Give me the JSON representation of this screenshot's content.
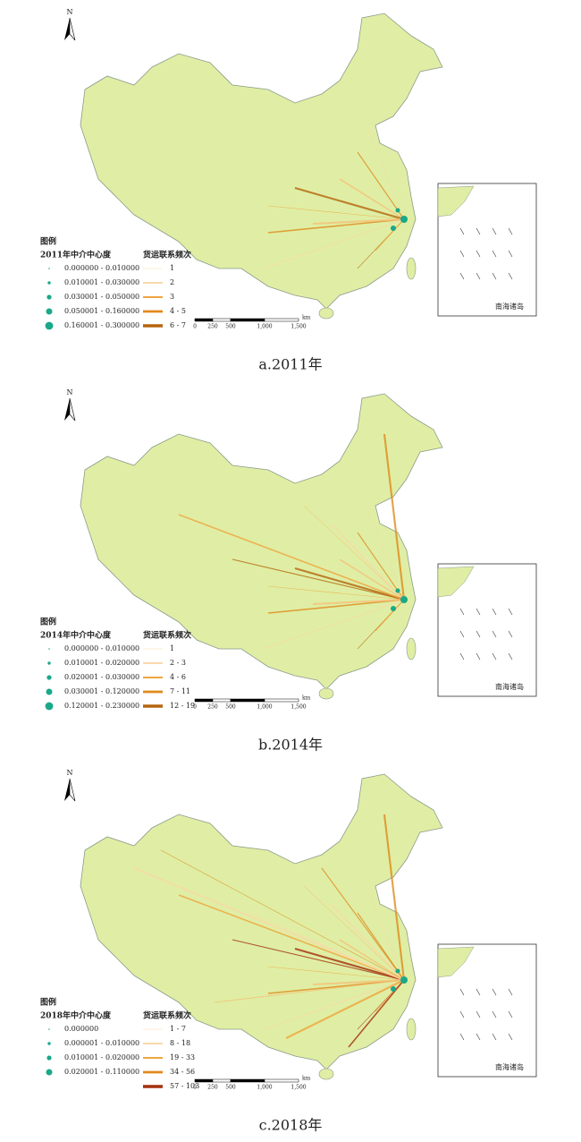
{
  "panels": [
    {
      "caption": "a.2011年",
      "north": "N",
      "legend_title": "图例",
      "centrality_title": "2011年中介中心度",
      "centrality_classes": [
        "0.000000 - 0.010000",
        "0.010001 - 0.030000",
        "0.030001 - 0.050000",
        "0.050001 - 0.160000",
        "0.160001 - 0.300000"
      ],
      "flow_title": "货运联系频次",
      "flow_classes": [
        "1",
        "2",
        "3",
        "4 - 5",
        "6 - 7"
      ],
      "scale_labels": [
        "0",
        "250",
        "500",
        "1,000",
        "1,500"
      ],
      "scale_unit": "km",
      "inset_label": "南海诸岛"
    },
    {
      "caption": "b.2014年",
      "north": "N",
      "legend_title": "图例",
      "centrality_title": "2014年中介中心度",
      "centrality_classes": [
        "0.000000 - 0.010000",
        "0.010001 - 0.020000",
        "0.020001 - 0.030000",
        "0.030001 - 0.120000",
        "0.120001 - 0.230000"
      ],
      "flow_title": "货运联系频次",
      "flow_classes": [
        "1",
        "2 - 3",
        "4 - 6",
        "7 - 11",
        "12 - 19"
      ],
      "scale_labels": [
        "0",
        "250",
        "500",
        "1,000",
        "1,500"
      ],
      "scale_unit": "km",
      "inset_label": "南海诸岛"
    },
    {
      "caption": "c.2018年",
      "north": "N",
      "legend_title": "图例",
      "centrality_title": "2018年中介中心度",
      "centrality_classes": [
        "0.000000",
        "0.000001 - 0.010000",
        "0.010001 - 0.020000",
        "0.020001 - 0.110000"
      ],
      "flow_title": "货运联系频次",
      "flow_classes": [
        "1 - 7",
        "8 - 18",
        "19 - 33",
        "34 - 56",
        "57 - 103"
      ],
      "scale_labels": [
        "0",
        "250",
        "500",
        "1,000",
        "1,500"
      ],
      "scale_unit": "km",
      "inset_label": "南海诸岛"
    }
  ]
}
